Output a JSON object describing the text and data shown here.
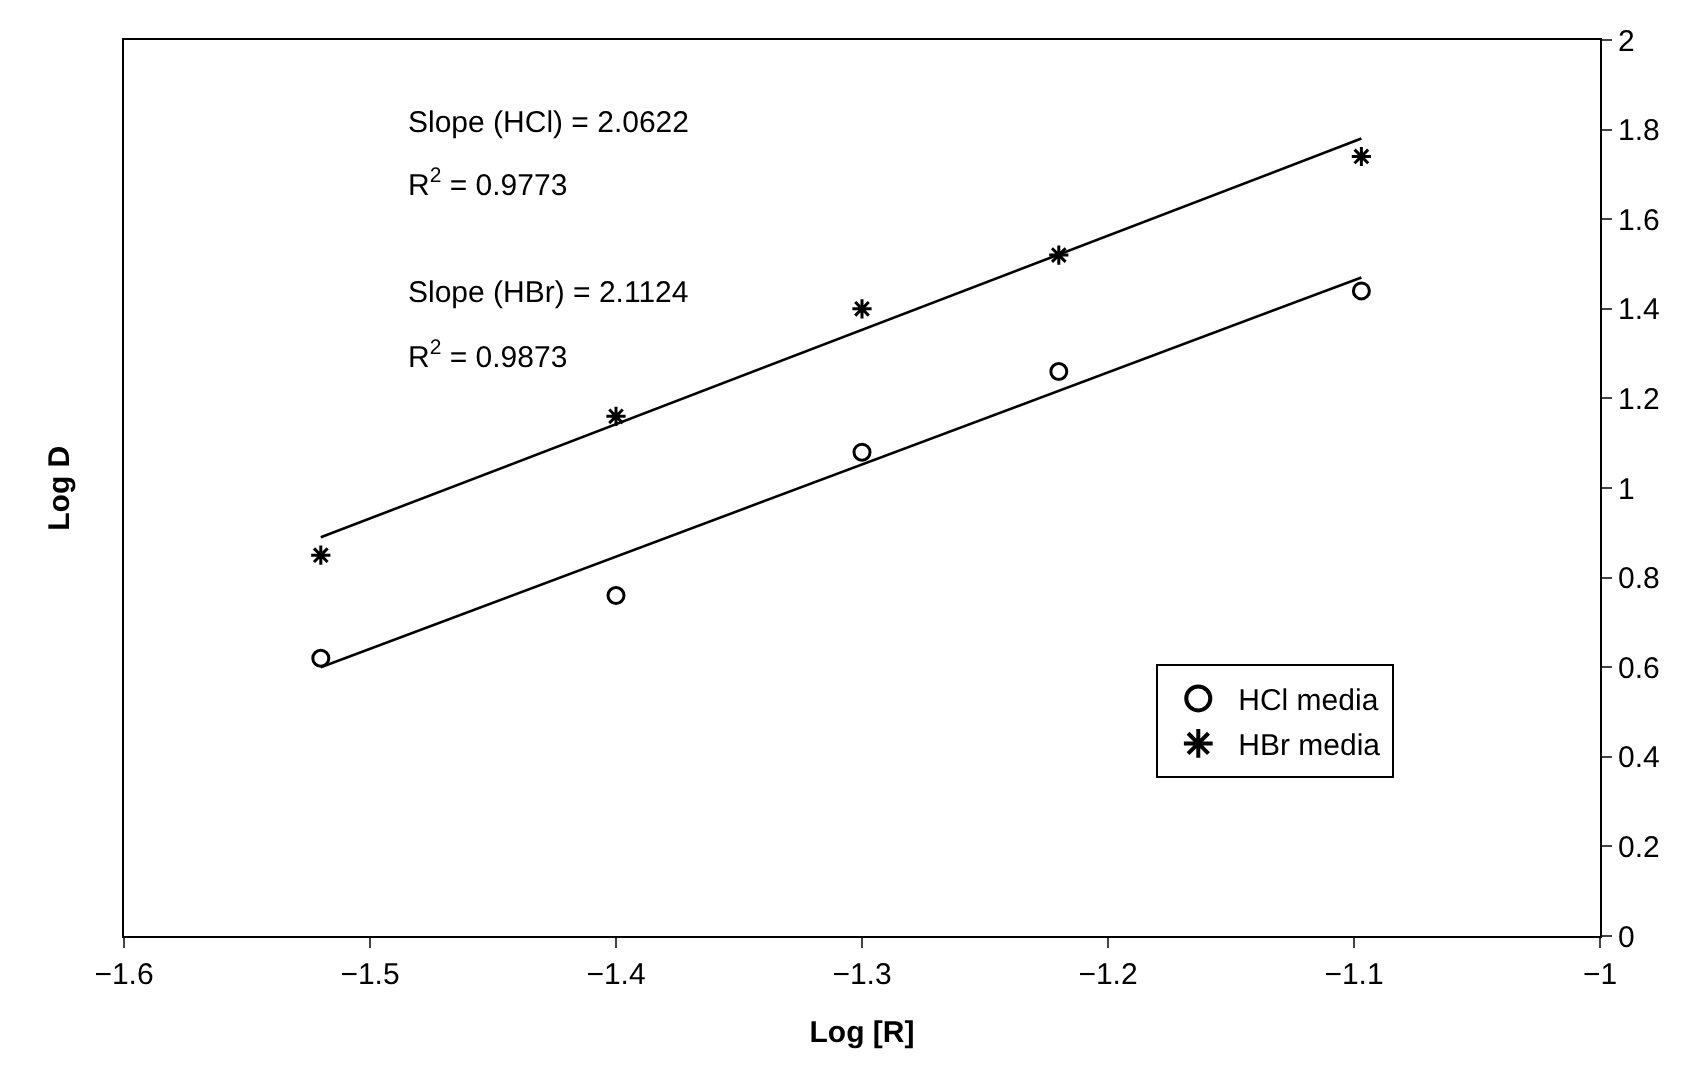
{
  "chart_data": {
    "type": "scatter",
    "xlabel": "Log [R]",
    "ylabel": "Log D",
    "xlim": [
      -1.6,
      -1
    ],
    "xticks": [
      -1.6,
      -1.5,
      -1.4,
      -1.3,
      -1.2,
      -1.1,
      -1
    ],
    "ylim": [
      0,
      2
    ],
    "yticks": [
      0,
      0.2,
      0.4,
      0.6,
      0.8,
      1,
      1.2,
      1.4,
      1.6,
      1.8,
      2
    ],
    "series": [
      {
        "name": "HCl media",
        "color": "#000000",
        "marker": "circle",
        "x": [
          -1.52,
          -1.4,
          -1.3,
          -1.22,
          -1.097
        ],
        "values": [
          0.62,
          0.76,
          1.08,
          1.26,
          1.44
        ]
      },
      {
        "name": "HBr media",
        "color": "#000000",
        "marker": "cross",
        "x": [
          -1.52,
          -1.4,
          -1.3,
          -1.22,
          -1.097
        ],
        "values": [
          0.85,
          1.16,
          1.4,
          1.52,
          1.74
        ]
      },
      {
        "type": "line",
        "color": "#000000",
        "marker": "none",
        "line_style": "solid",
        "x": [
          -1.52,
          -1.097
        ],
        "values": [
          0.6,
          1.47
        ]
      },
      {
        "type": "line",
        "color": "#000000",
        "marker": "none",
        "line_style": "solid",
        "x": [
          -1.52,
          -1.097
        ],
        "values": [
          0.89,
          1.78
        ]
      }
    ],
    "annotations": [
      "Slope (HCl) = 2.0622",
      "R$^{2}$ = 0.9773",
      "Slope (HBr) = 2.1124",
      "R$^{2}$ = 0.9873"
    ],
    "legend": "bottom right",
    "grid": false
  }
}
